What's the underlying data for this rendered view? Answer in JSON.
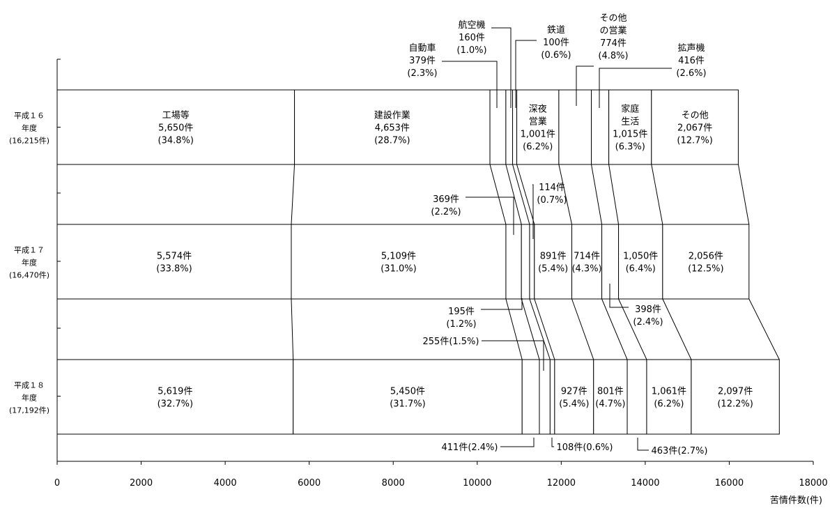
{
  "chart_data": {
    "type": "bar",
    "orientation": "horizontal",
    "stacked": true,
    "xlim": [
      0,
      18000
    ],
    "x_ticks": [
      "0",
      "2000",
      "4000",
      "6000",
      "8000",
      "10000",
      "12000",
      "14000",
      "16000",
      "18000"
    ],
    "xlabel": "苦情件数(件)",
    "categories": [
      {
        "lines": [
          "平成１６",
          "年度",
          "(16,215件)"
        ]
      },
      {
        "lines": [
          "平成１７",
          "年度",
          "(16,470件)"
        ]
      },
      {
        "lines": [
          "平成１８",
          "年度",
          "(17,192件)"
        ]
      }
    ],
    "segment_order": [
      "工場等",
      "建設作業",
      "自動車",
      "航空機",
      "鉄道",
      "深夜営業",
      "その他の営業",
      "拡声機",
      "家庭生活",
      "その他"
    ],
    "values": [
      [
        5650,
        4653,
        379,
        160,
        100,
        1001,
        774,
        416,
        1015,
        2067
      ],
      [
        5574,
        5109,
        369,
        195,
        114,
        891,
        714,
        398,
        1050,
        2056
      ],
      [
        5619,
        5450,
        411,
        255,
        108,
        927,
        801,
        463,
        1061,
        2097
      ]
    ],
    "labels": {
      "inside": [
        [
          {
            "seg": 0,
            "lines": [
              "工場等",
              "5,650件",
              "(34.8%)"
            ]
          },
          {
            "seg": 1,
            "lines": [
              "建設作業",
              "4,653件",
              "(28.7%)"
            ]
          },
          {
            "seg": 5,
            "lines": [
              "深夜",
              "営業",
              "1,001件",
              "(6.2%)"
            ]
          },
          {
            "seg": 8,
            "lines": [
              "家庭",
              "生活",
              "1,015件",
              "(6.3%)"
            ]
          },
          {
            "seg": 9,
            "lines": [
              "その他",
              "2,067件",
              "(12.7%)"
            ]
          }
        ],
        [
          {
            "seg": 0,
            "lines": [
              "5,574件",
              "(33.8%)"
            ]
          },
          {
            "seg": 1,
            "lines": [
              "5,109件",
              "(31.0%)"
            ]
          },
          {
            "seg": 5,
            "lines": [
              "891件",
              "(5.4%)"
            ]
          },
          {
            "seg": 6,
            "lines": [
              "714件",
              "(4.3%)"
            ]
          },
          {
            "seg": 8,
            "lines": [
              "1,050件",
              "(6.4%)"
            ]
          },
          {
            "seg": 9,
            "lines": [
              "2,056件",
              "(12.5%)"
            ]
          }
        ],
        [
          {
            "seg": 0,
            "lines": [
              "5,619件",
              "(32.7%)"
            ]
          },
          {
            "seg": 1,
            "lines": [
              "5,450件",
              "(31.7%)"
            ]
          },
          {
            "seg": 5,
            "lines": [
              "927件",
              "(5.4%)"
            ]
          },
          {
            "seg": 6,
            "lines": [
              "801件",
              "(4.7%)"
            ]
          },
          {
            "seg": 8,
            "lines": [
              "1,061件",
              "(6.2%)"
            ]
          },
          {
            "seg": 9,
            "lines": [
              "2,097件",
              "(12.2%)"
            ]
          }
        ]
      ],
      "callouts": [
        {
          "bar": 0,
          "seg": 2,
          "lines": [
            "自動車",
            "379件",
            "(2.3%)"
          ]
        },
        {
          "bar": 0,
          "seg": 3,
          "lines": [
            "航空機",
            "160件",
            "(1.0%)"
          ]
        },
        {
          "bar": 0,
          "seg": 4,
          "lines": [
            "鉄道",
            "100件",
            "(0.6%)"
          ]
        },
        {
          "bar": 0,
          "seg": 6,
          "lines": [
            "その他",
            "の営業",
            "774件",
            "(4.8%)"
          ]
        },
        {
          "bar": 0,
          "seg": 7,
          "lines": [
            "拡声機",
            "416件",
            "(2.6%)"
          ]
        },
        {
          "bar": 1,
          "seg": 2,
          "lines": [
            "369件",
            "(2.2%)"
          ]
        },
        {
          "bar": 1,
          "seg": 4,
          "lines": [
            "114件",
            "(0.7%)"
          ]
        },
        {
          "bar": 1,
          "seg": 3,
          "lines": [
            "195件",
            "(1.2%)"
          ]
        },
        {
          "bar": 1,
          "seg": 7,
          "lines": [
            "398件",
            "(2.4%)"
          ]
        },
        {
          "bar": 2,
          "seg": 3,
          "lines": [
            "255件(1.5%)"
          ]
        },
        {
          "bar": 2,
          "seg": 2,
          "lines": [
            "411件(2.4%)"
          ]
        },
        {
          "bar": 2,
          "seg": 4,
          "lines": [
            "108件(0.6%)"
          ]
        },
        {
          "bar": 2,
          "seg": 7,
          "lines": [
            "463件(2.7%)"
          ]
        }
      ]
    }
  }
}
